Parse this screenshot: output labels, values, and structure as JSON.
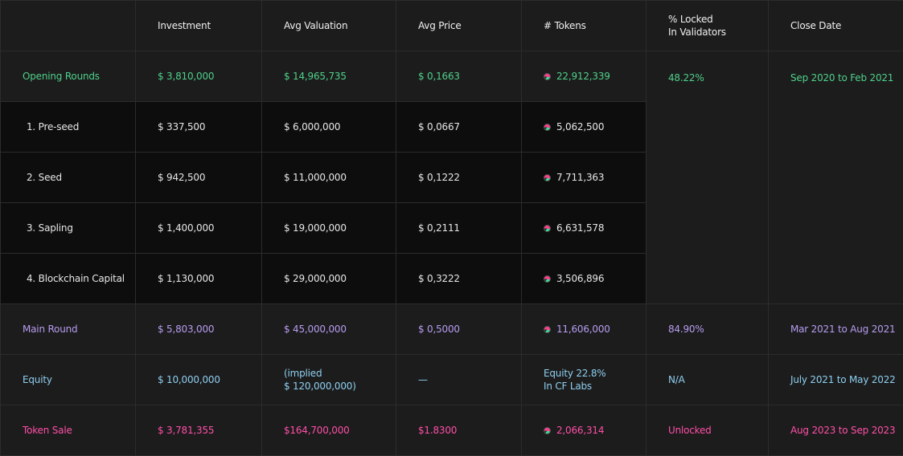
{
  "table": {
    "header": [
      "Investment",
      "Avg Valuation",
      "Avg Price",
      "# Tokens",
      [
        "% Locked",
        "In Validators"
      ],
      "Close Date"
    ],
    "rows": [
      {
        "color": "#4fd08a",
        "cells": [
          "Opening Rounds",
          "$ 3,810,000",
          "$ 14,965,735",
          "$ 0,1663",
          "22,912,339",
          "48.22%",
          "Sep 2020 to Feb 2021"
        ]
      },
      {
        "color": "#e6e6e6",
        "cells": [
          "1.  Pre-seed",
          "$ 337,500",
          "$ 6,000,000",
          "$ 0,0667",
          "5,062,500"
        ]
      },
      {
        "color": "#e6e6e6",
        "cells": [
          "2.  Seed",
          "$ 942,500",
          "$ 11,000,000",
          "$ 0,1222",
          "7,711,363"
        ]
      },
      {
        "color": "#e6e6e6",
        "cells": [
          "3.  Sapling",
          "$ 1,400,000",
          "$ 19,000,000",
          "$ 0,2111",
          "6,631,578"
        ]
      },
      {
        "color": "#e6e6e6",
        "cells": [
          "4.  Blockchain Capital",
          "$ 1,130,000",
          "$ 29,000,000",
          "$ 0,3222",
          "3,506,896"
        ]
      },
      {
        "color": "#b79cf0",
        "cells": [
          "Main Round",
          "$ 5,803,000",
          "$ 45,000,000",
          "$ 0,5000",
          "11,606,000",
          "84.90%",
          "Mar 2021 to Aug 2021"
        ]
      },
      {
        "color": "#8ecff0",
        "cells": [
          "Equity",
          "$ 10,000,000",
          [
            "(implied",
            "$ 120,000,000)"
          ],
          "—",
          [
            "Equity 22.8%",
            "In CF Labs"
          ],
          "N/A",
          "July 2021 to May 2022"
        ]
      },
      {
        "color": "#ff4fa8",
        "cells": [
          "Token Sale",
          "$ 3,781,355",
          "$164,700,000",
          "$1.8300",
          "2,066,314",
          "Unlocked",
          "Aug 2023 to Sep 2023"
        ]
      }
    ]
  }
}
